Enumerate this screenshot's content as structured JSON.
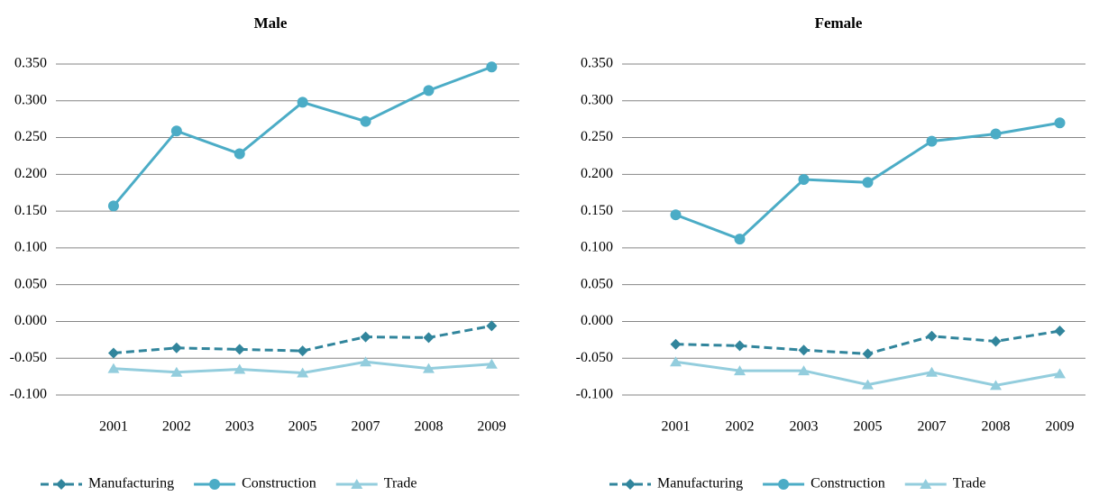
{
  "chart_data": [
    {
      "type": "line",
      "title": "Male",
      "categories": [
        "2001",
        "2002",
        "2003",
        "2005",
        "2007",
        "2008",
        "2009"
      ],
      "series": [
        {
          "name": "Manufacturing",
          "color": "#31859c",
          "style": "dashed",
          "marker": "diamond",
          "values": [
            -0.043,
            -0.036,
            -0.038,
            -0.04,
            -0.021,
            -0.022,
            -0.006
          ]
        },
        {
          "name": "Construction",
          "color": "#4bacc6",
          "style": "solid",
          "marker": "circle",
          "values": [
            0.157,
            0.259,
            0.228,
            0.298,
            0.272,
            0.314,
            0.346
          ]
        },
        {
          "name": "Trade",
          "color": "#93cddd",
          "style": "solid",
          "marker": "triangle",
          "values": [
            -0.064,
            -0.069,
            -0.065,
            -0.07,
            -0.055,
            -0.064,
            -0.058
          ]
        }
      ],
      "ylim": [
        -0.1,
        0.35
      ],
      "yticks": [
        {
          "value": -0.1,
          "label": "-0.100"
        },
        {
          "value": -0.05,
          "label": "-0.050"
        },
        {
          "value": 0,
          "label": "0.000"
        },
        {
          "value": 0.05,
          "label": "0.050"
        },
        {
          "value": 0.1,
          "label": "0.100"
        },
        {
          "value": 0.15,
          "label": "0.150"
        },
        {
          "value": 0.2,
          "label": "0.200"
        },
        {
          "value": 0.25,
          "label": "0.250"
        },
        {
          "value": 0.3,
          "label": "0.300"
        },
        {
          "value": 0.35,
          "label": "0.350"
        }
      ],
      "grid": true,
      "legend": "bottom"
    },
    {
      "type": "line",
      "title": "Female",
      "categories": [
        "2001",
        "2002",
        "2003",
        "2005",
        "2007",
        "2008",
        "2009"
      ],
      "series": [
        {
          "name": "Manufacturing",
          "color": "#31859c",
          "style": "dashed",
          "marker": "diamond",
          "values": [
            -0.031,
            -0.033,
            -0.039,
            -0.044,
            -0.02,
            -0.027,
            -0.013
          ]
        },
        {
          "name": "Construction",
          "color": "#4bacc6",
          "style": "solid",
          "marker": "circle",
          "values": [
            0.145,
            0.112,
            0.193,
            0.189,
            0.245,
            0.255,
            0.27
          ]
        },
        {
          "name": "Trade",
          "color": "#93cddd",
          "style": "solid",
          "marker": "triangle",
          "values": [
            -0.055,
            -0.067,
            -0.067,
            -0.086,
            -0.069,
            -0.087,
            -0.071
          ]
        }
      ],
      "ylim": [
        -0.1,
        0.35
      ],
      "yticks": [
        {
          "value": -0.1,
          "label": "-0.100"
        },
        {
          "value": -0.05,
          "label": "-0.050"
        },
        {
          "value": 0,
          "label": "0.000"
        },
        {
          "value": 0.05,
          "label": "0.050"
        },
        {
          "value": 0.1,
          "label": "0.100"
        },
        {
          "value": 0.15,
          "label": "0.150"
        },
        {
          "value": 0.2,
          "label": "0.200"
        },
        {
          "value": 0.25,
          "label": "0.250"
        },
        {
          "value": 0.3,
          "label": "0.300"
        },
        {
          "value": 0.35,
          "label": "0.350"
        }
      ],
      "grid": true,
      "legend": "bottom"
    }
  ]
}
